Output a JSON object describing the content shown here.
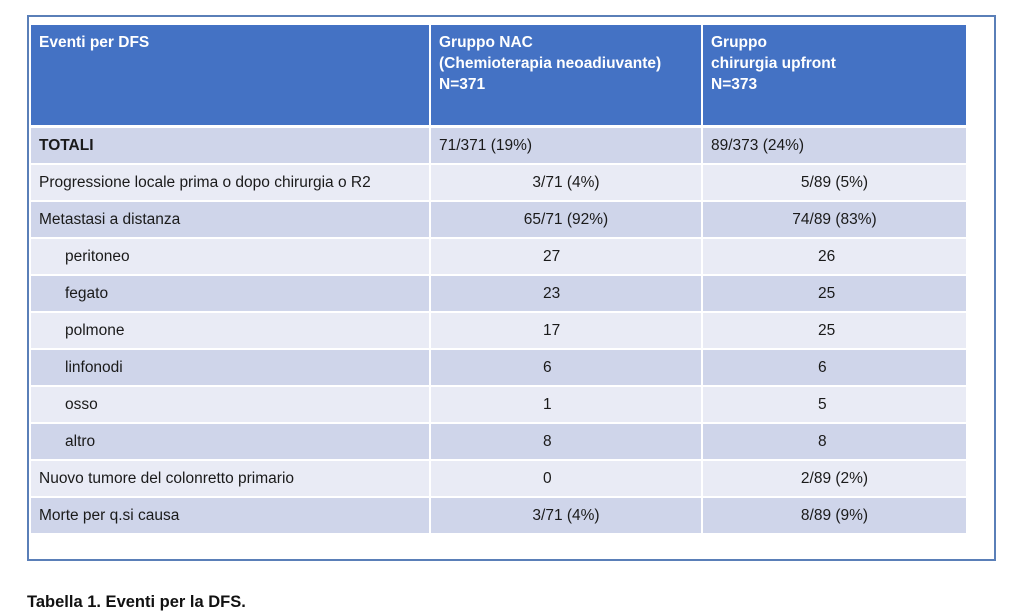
{
  "table": {
    "headers": [
      [
        "Eventi per DFS"
      ],
      [
        "Gruppo NAC",
        "(Chemioterapia neoadiuvante)",
        "N=371"
      ],
      [
        "Gruppo",
        "chirurgia upfront",
        "N=373"
      ]
    ],
    "rows": [
      {
        "label": "TOTALI",
        "nac": "71/371 (19%)",
        "upfront": "89/373 (24%)"
      },
      {
        "label": "Progressione locale prima o dopo chirurgia o R2",
        "nac": "3/71 (4%)",
        "upfront": "5/89 (5%)"
      },
      {
        "label": "Metastasi a distanza",
        "nac": "65/71 (92%)",
        "upfront": "74/89 (83%)"
      },
      {
        "label": "peritoneo",
        "nac": "27",
        "upfront": "26"
      },
      {
        "label": "fegato",
        "nac": "23",
        "upfront": "25"
      },
      {
        "label": "polmone",
        "nac": "17",
        "upfront": "25"
      },
      {
        "label": "linfonodi",
        "nac": "6",
        "upfront": "6"
      },
      {
        "label": "osso",
        "nac": "1",
        "upfront": "5"
      },
      {
        "label": "altro",
        "nac": "8",
        "upfront": "8"
      },
      {
        "label": "Nuovo tumore del colonretto primario",
        "nac": "0",
        "upfront": "2/89 (2%)"
      },
      {
        "label": "Morte per q.si causa",
        "nac": "3/71 (4%)",
        "upfront": "8/89 (9%)"
      }
    ]
  },
  "caption": "Tabella 1. Eventi per la DFS.",
  "colors": {
    "header_bg": "#4472c4",
    "row_dark": "#cfd5ea",
    "row_light": "#e9ebf5",
    "frame_border": "#5a7fb8"
  }
}
